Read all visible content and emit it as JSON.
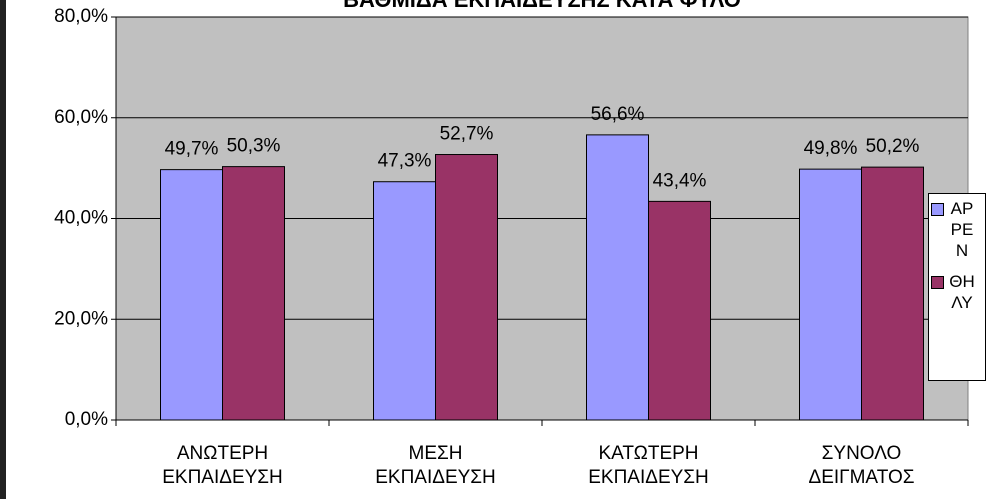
{
  "chart_data": {
    "type": "bar",
    "title": "ΒΑΘΜΙΔΑ ΕΚΠΑΙΔΕΥΣΗΣ ΚΑΤΑ ΦΥΛΟ",
    "categories": [
      "ΑΝΩΤΕΡΗ ΕΚΠΑΙΔΕΥΣΗ",
      "ΜΕΣΗ ΕΚΠΑΙΔΕΥΣΗ",
      "ΚΑΤΩΤΕΡΗ ΕΚΠΑΙΔΕΥΣΗ",
      "ΣΥΝΟΛΟ ΔΕΙΓΜΑΤΟΣ"
    ],
    "series": [
      {
        "name": "ΑΡΡΕΝ",
        "color": "#9999ff",
        "values": [
          49.7,
          47.3,
          56.6,
          49.8
        ],
        "value_labels": [
          "49,7%",
          "47,3%",
          "56,6%",
          "49,8%"
        ]
      },
      {
        "name": "ΘΗΛΥ",
        "color": "#993366",
        "values": [
          50.3,
          52.7,
          43.4,
          50.2
        ],
        "value_labels": [
          "50,3%",
          "52,7%",
          "43,4%",
          "50,2%"
        ]
      }
    ],
    "ylim": [
      0,
      80
    ],
    "yticks": [
      {
        "value": 0,
        "label": "0,0%"
      },
      {
        "value": 20,
        "label": "20,0%"
      },
      {
        "value": 40,
        "label": "40,0%"
      },
      {
        "value": 60,
        "label": "60,0%"
      },
      {
        "value": 80,
        "label": "80,0%"
      }
    ],
    "grid": true,
    "legend": "right"
  }
}
